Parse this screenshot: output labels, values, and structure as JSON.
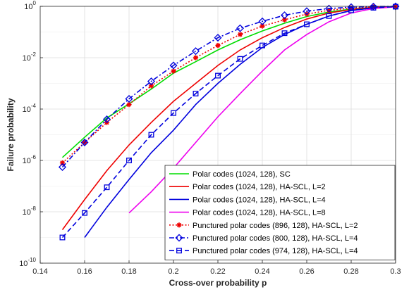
{
  "chart_data": {
    "type": "line",
    "xlabel": "Cross-over probability p",
    "ylabel": "Failure probability",
    "xlim": [
      0.14,
      0.3
    ],
    "ylim": [
      1e-10,
      1
    ],
    "yscale": "log",
    "grid": true,
    "legend_position": "bottom-right",
    "x_ticks": [
      "0.14",
      "0.16",
      "0.18",
      "0.2",
      "0.22",
      "0.24",
      "0.26",
      "0.28",
      "0.3"
    ],
    "y_ticks": [
      {
        "base": "10",
        "exp": "0"
      },
      {
        "base": "10",
        "exp": "-2"
      },
      {
        "base": "10",
        "exp": "-4"
      },
      {
        "base": "10",
        "exp": "-6"
      },
      {
        "base": "10",
        "exp": "-8"
      },
      {
        "base": "10",
        "exp": "-10"
      }
    ],
    "series": [
      {
        "name": "Polar codes (1024, 128), SC",
        "color": "#00dd00",
        "dash": "solid",
        "marker": "none",
        "x": [
          0.15,
          0.16,
          0.17,
          0.18,
          0.19,
          0.2,
          0.21,
          0.22,
          0.23,
          0.24,
          0.25,
          0.26,
          0.27,
          0.28,
          0.29,
          0.3
        ],
        "y": [
          1.3e-06,
          8e-06,
          4.5e-05,
          0.00016,
          0.0006,
          0.0025,
          0.007,
          0.02,
          0.05,
          0.11,
          0.22,
          0.4,
          0.6,
          0.78,
          0.9,
          0.97
        ]
      },
      {
        "name": "Polar codes (1024, 128), HA-SCL, L=2",
        "color": "#ee0000",
        "dash": "solid",
        "marker": "none",
        "x": [
          0.15,
          0.16,
          0.17,
          0.18,
          0.19,
          0.2,
          0.21,
          0.22,
          0.23,
          0.24,
          0.25,
          0.26,
          0.27,
          0.28,
          0.29,
          0.3
        ],
        "y": [
          2e-09,
          3e-08,
          4e-07,
          4e-06,
          3e-05,
          0.0002,
          0.001,
          0.005,
          0.02,
          0.06,
          0.15,
          0.32,
          0.55,
          0.75,
          0.9,
          0.97
        ]
      },
      {
        "name": "Polar codes (1024, 128), HA-SCL, L=4",
        "color": "#0000dd",
        "dash": "solid",
        "marker": "none",
        "x": [
          0.16,
          0.17,
          0.18,
          0.19,
          0.2,
          0.21,
          0.22,
          0.23,
          0.24,
          0.25,
          0.26,
          0.27,
          0.28,
          0.29,
          0.3
        ],
        "y": [
          1e-09,
          1.5e-08,
          1.8e-07,
          2e-06,
          1.5e-05,
          0.00015,
          0.001,
          0.0055,
          0.025,
          0.08,
          0.2,
          0.42,
          0.68,
          0.87,
          0.97
        ]
      },
      {
        "name": "Polar codes (1024, 128), HA-SCL, L=8",
        "color": "#ee00ee",
        "dash": "solid",
        "marker": "none",
        "x": [
          0.18,
          0.19,
          0.2,
          0.21,
          0.22,
          0.23,
          0.24,
          0.25,
          0.26,
          0.27,
          0.28,
          0.29,
          0.3
        ],
        "y": [
          9e-09,
          6e-08,
          5e-07,
          5e-06,
          5e-05,
          0.0004,
          0.003,
          0.02,
          0.08,
          0.25,
          0.55,
          0.82,
          0.96
        ]
      },
      {
        "name": "Punctured polar codes (896, 128), HA-SCL, L=2",
        "color": "#ee0000",
        "dash": "dot",
        "marker": "asterisk",
        "x": [
          0.15,
          0.16,
          0.17,
          0.18,
          0.19,
          0.2,
          0.21,
          0.22,
          0.23,
          0.24,
          0.25,
          0.26,
          0.27,
          0.28,
          0.29,
          0.3
        ],
        "y": [
          8e-07,
          5e-06,
          3e-05,
          0.00015,
          0.0008,
          0.003,
          0.01,
          0.03,
          0.08,
          0.17,
          0.3,
          0.5,
          0.7,
          0.86,
          0.95,
          0.99
        ]
      },
      {
        "name": "Punctured polar codes (800, 128), HA-SCL, L=4",
        "color": "#0000dd",
        "dash": "dashdot",
        "marker": "diamond",
        "x": [
          0.15,
          0.16,
          0.17,
          0.18,
          0.19,
          0.2,
          0.21,
          0.22,
          0.23,
          0.24,
          0.25,
          0.26,
          0.27,
          0.28,
          0.29,
          0.3
        ],
        "y": [
          5.5e-07,
          5e-06,
          4e-05,
          0.00025,
          0.0012,
          0.005,
          0.018,
          0.06,
          0.14,
          0.26,
          0.45,
          0.65,
          0.82,
          0.93,
          0.98,
          1.0
        ]
      },
      {
        "name": "Punctured polar codes (974, 128), HA-SCL, L=4",
        "color": "#0000dd",
        "dash": "dash",
        "marker": "square",
        "x": [
          0.15,
          0.16,
          0.17,
          0.18,
          0.19,
          0.2,
          0.21,
          0.22,
          0.23,
          0.24,
          0.25,
          0.26,
          0.27,
          0.28,
          0.29,
          0.3
        ],
        "y": [
          1e-09,
          9e-09,
          9e-08,
          1e-06,
          1e-05,
          7e-05,
          0.0004,
          0.002,
          0.009,
          0.03,
          0.09,
          0.2,
          0.42,
          0.7,
          0.88,
          0.97
        ]
      }
    ]
  }
}
